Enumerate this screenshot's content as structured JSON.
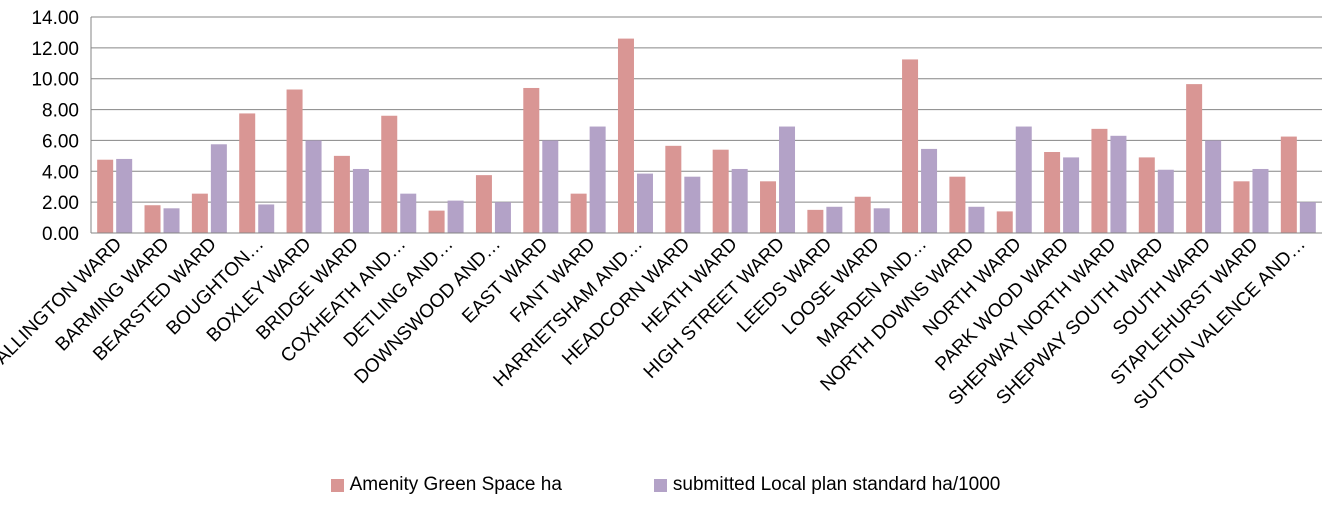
{
  "chart_data": {
    "type": "bar",
    "categories": [
      "ALLINGTON WARD",
      "BARMING WARD",
      "BEARSTED WARD",
      "BOUGHTON…",
      "BOXLEY WARD",
      "BRIDGE WARD",
      "COXHEATH AND…",
      "DETLING AND…",
      "DOWNSWOOD AND…",
      "EAST WARD",
      "FANT WARD",
      "HARRIETSHAM AND…",
      "HEADCORN WARD",
      "HEATH WARD",
      "HIGH STREET WARD",
      "LEEDS WARD",
      "LOOSE WARD",
      "MARDEN AND…",
      "NORTH DOWNS WARD",
      "NORTH WARD",
      "PARK WOOD WARD",
      "SHEPWAY NORTH WARD",
      "SHEPWAY SOUTH WARD",
      "SOUTH WARD",
      "STAPLEHURST WARD",
      "SUTTON VALENCE AND…"
    ],
    "series": [
      {
        "name": "Amenity Green Space ha",
        "color": "#d99694",
        "values": [
          4.75,
          1.8,
          2.55,
          7.75,
          9.3,
          5.0,
          7.6,
          1.45,
          3.75,
          9.4,
          2.55,
          12.6,
          5.65,
          5.4,
          3.35,
          1.5,
          2.35,
          11.25,
          3.65,
          1.4,
          5.25,
          6.75,
          4.9,
          9.65,
          3.35,
          6.25
        ]
      },
      {
        "name": "submitted Local plan standard ha/1000",
        "color": "#b3a2c7",
        "values": [
          4.8,
          1.6,
          5.75,
          1.85,
          6.0,
          4.15,
          2.55,
          2.1,
          2.0,
          6.0,
          6.9,
          3.85,
          3.65,
          4.15,
          6.9,
          1.7,
          1.6,
          5.45,
          1.7,
          6.9,
          4.9,
          6.3,
          4.1,
          6.0,
          4.15,
          2.0
        ]
      }
    ],
    "yticks": [
      "0.00",
      "2.00",
      "4.00",
      "6.00",
      "8.00",
      "10.00",
      "12.00",
      "14.00"
    ],
    "ylim": [
      0,
      14
    ],
    "grid": true,
    "legend_position": "bottom"
  }
}
